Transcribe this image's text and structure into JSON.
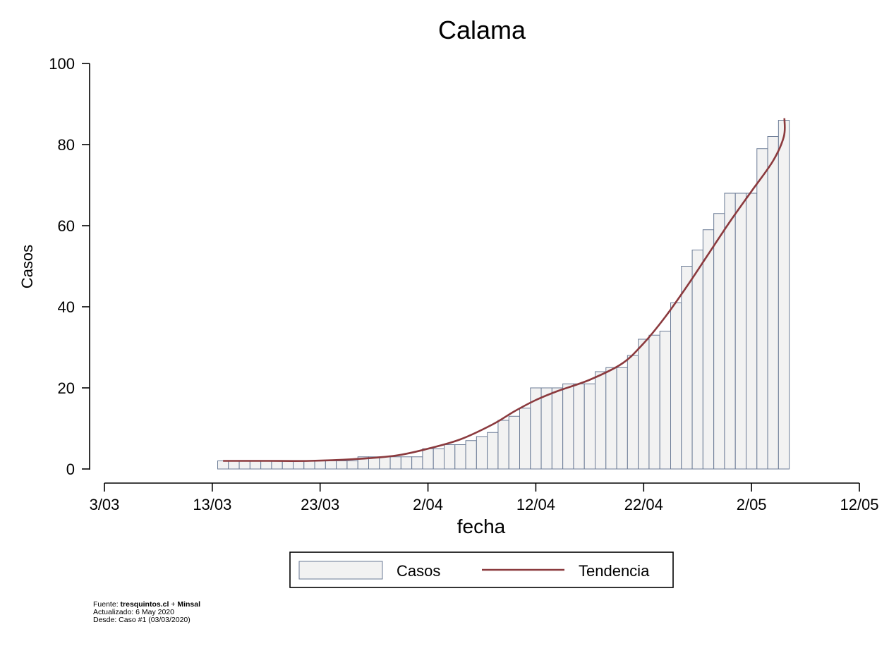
{
  "chart_data": {
    "type": "bar",
    "title": "Calama",
    "xlabel": "fecha",
    "ylabel": "Casos",
    "ylim": [
      0,
      100
    ],
    "yticks": [
      0,
      20,
      40,
      60,
      80,
      100
    ],
    "x_axis": {
      "start": "2020-03-03",
      "end": "2020-05-12",
      "ticks": [
        {
          "date": "2020-03-03",
          "label": "3/03"
        },
        {
          "date": "2020-03-13",
          "label": "13/03"
        },
        {
          "date": "2020-03-23",
          "label": "23/03"
        },
        {
          "date": "2020-04-02",
          "label": "2/04"
        },
        {
          "date": "2020-04-12",
          "label": "12/04"
        },
        {
          "date": "2020-04-22",
          "label": "22/04"
        },
        {
          "date": "2020-05-02",
          "label": "2/05"
        },
        {
          "date": "2020-05-12",
          "label": "12/05"
        }
      ]
    },
    "series": [
      {
        "name": "Casos",
        "kind": "bar",
        "color": "#f2f2f2",
        "edge_color": "#6b7b96",
        "dates": [
          "2020-03-14",
          "2020-03-15",
          "2020-03-16",
          "2020-03-17",
          "2020-03-18",
          "2020-03-19",
          "2020-03-20",
          "2020-03-21",
          "2020-03-22",
          "2020-03-23",
          "2020-03-24",
          "2020-03-25",
          "2020-03-26",
          "2020-03-27",
          "2020-03-28",
          "2020-03-29",
          "2020-03-30",
          "2020-03-31",
          "2020-04-01",
          "2020-04-02",
          "2020-04-03",
          "2020-04-04",
          "2020-04-05",
          "2020-04-06",
          "2020-04-07",
          "2020-04-08",
          "2020-04-09",
          "2020-04-10",
          "2020-04-11",
          "2020-04-12",
          "2020-04-13",
          "2020-04-14",
          "2020-04-15",
          "2020-04-16",
          "2020-04-17",
          "2020-04-18",
          "2020-04-19",
          "2020-04-20",
          "2020-04-21",
          "2020-04-22",
          "2020-04-23",
          "2020-04-24",
          "2020-04-25",
          "2020-04-26",
          "2020-04-27",
          "2020-04-28",
          "2020-04-29",
          "2020-04-30",
          "2020-05-01",
          "2020-05-02",
          "2020-05-03",
          "2020-05-04",
          "2020-05-05"
        ],
        "values": [
          2,
          2,
          2,
          2,
          2,
          2,
          2,
          2,
          2,
          2,
          2,
          2,
          2,
          3,
          3,
          3,
          3,
          3,
          3,
          5,
          5,
          6,
          6,
          7,
          8,
          9,
          12,
          13,
          15,
          20,
          20,
          20,
          21,
          21,
          21,
          24,
          25,
          25,
          28,
          32,
          33,
          34,
          41,
          50,
          54,
          59,
          63,
          68,
          68,
          68,
          79,
          82,
          86
        ]
      },
      {
        "name": "Tendencia",
        "kind": "line",
        "color": "#8b3a3e",
        "dates": [
          "2020-03-14",
          "2020-03-18",
          "2020-03-22",
          "2020-03-26",
          "2020-03-30",
          "2020-04-02",
          "2020-04-05",
          "2020-04-08",
          "2020-04-10",
          "2020-04-12",
          "2020-04-14",
          "2020-04-17",
          "2020-04-20",
          "2020-04-22",
          "2020-04-24",
          "2020-04-26",
          "2020-04-28",
          "2020-04-30",
          "2020-05-02",
          "2020-05-04",
          "2020-05-05"
        ],
        "values": [
          2,
          2,
          2,
          2.4,
          3.3,
          5,
          7.3,
          11,
          14.2,
          17,
          19.2,
          22,
          26,
          31,
          37.5,
          45,
          53,
          61,
          68.5,
          76,
          82
        ],
        "end_value": 86.5
      }
    ],
    "legend": {
      "placement": "bottom-center",
      "entries": [
        "Casos",
        "Tendencia"
      ]
    },
    "footnote": {
      "line1_prefix": "Fuente: ",
      "line1_bold_a": "tresquintos.cl",
      "line1_mid": " + ",
      "line1_bold_b": "Minsal",
      "line2": "Actualizado: 6 May 2020",
      "line3": "Desde: Caso #1   (03/03/2020)"
    }
  }
}
